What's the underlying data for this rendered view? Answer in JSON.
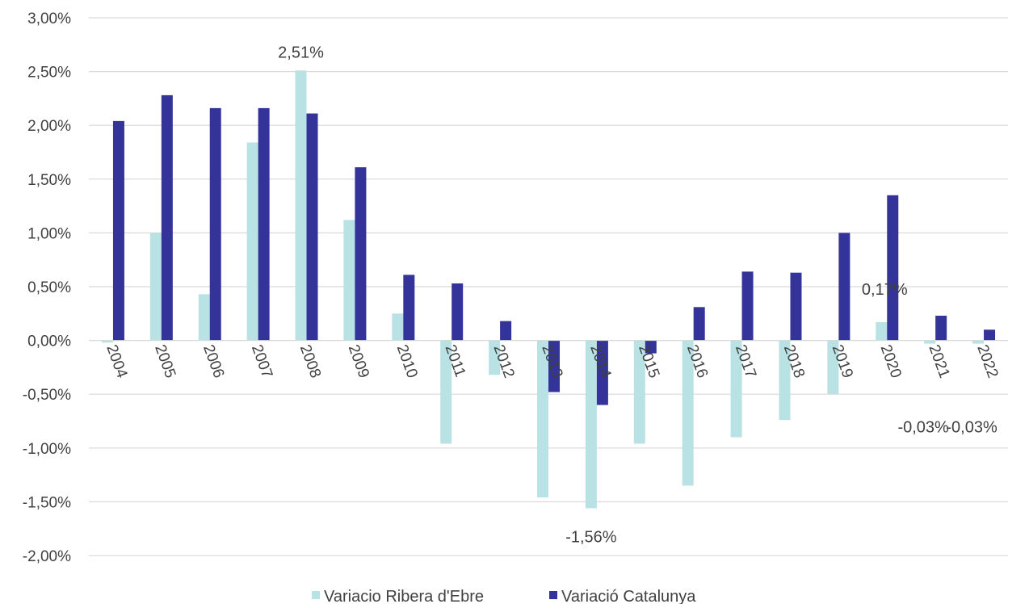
{
  "chart_data": {
    "type": "bar",
    "categories": [
      "2004",
      "2005",
      "2006",
      "2007",
      "2008",
      "2009",
      "2010",
      "2011",
      "2012",
      "2013",
      "2014",
      "2015",
      "2016",
      "2017",
      "2018",
      "2019",
      "2020",
      "2021",
      "2022"
    ],
    "series": [
      {
        "name": "Variacio Ribera d'Ebre",
        "color": "#b9e2e4",
        "values": [
          -0.02,
          1.0,
          0.43,
          1.84,
          2.51,
          1.12,
          0.25,
          -0.96,
          -0.32,
          -1.46,
          -1.56,
          -0.96,
          -1.35,
          -0.9,
          -0.74,
          -0.5,
          0.17,
          -0.03,
          -0.03
        ]
      },
      {
        "name": "Variació Catalunya",
        "color": "#333399",
        "values": [
          2.04,
          2.28,
          2.16,
          2.16,
          2.11,
          1.61,
          0.61,
          0.53,
          0.18,
          -0.48,
          -0.6,
          -0.12,
          0.31,
          0.64,
          0.63,
          1.0,
          1.35,
          0.23,
          0.1
        ]
      }
    ],
    "ylim": [
      -2,
      3
    ],
    "yticks": [
      "3,00%",
      "2,50%",
      "2,00%",
      "1,50%",
      "1,00%",
      "0,50%",
      "0,00%",
      "-0,50%",
      "-1,00%",
      "-1,50%",
      "-2,00%"
    ],
    "ytick_values": [
      3,
      2.5,
      2,
      1.5,
      1,
      0.5,
      0,
      -0.5,
      -1,
      -1.5,
      -2
    ],
    "data_labels": [
      {
        "category_index": 4,
        "series_index": 0,
        "text": "2,51%"
      },
      {
        "category_index": 10,
        "series_index": 0,
        "text": "-1,56%"
      },
      {
        "category_index": 16,
        "series_index": 0,
        "text": "0,17%"
      },
      {
        "category_index": 17,
        "series_index": 0,
        "text": "-0,03%"
      },
      {
        "category_index": 18,
        "series_index": 0,
        "text": "-0,03%"
      }
    ],
    "grid": true,
    "legend_position": "bottom"
  }
}
